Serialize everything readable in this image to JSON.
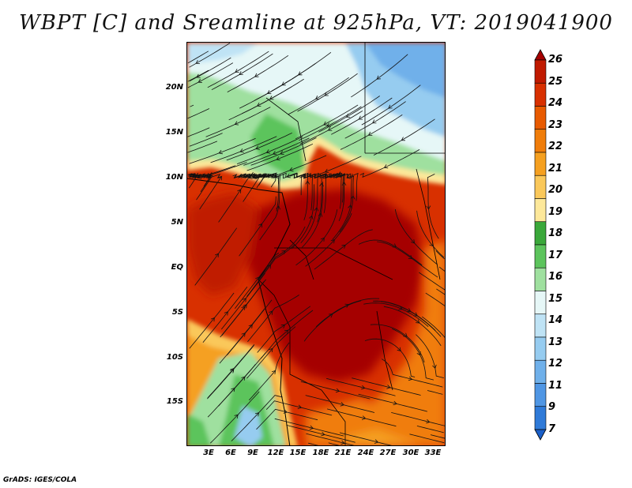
{
  "title": "WBPT [C] and Sreamline at 925hPa, VT: 2019041900",
  "credit": "GrADS: IGES/COLA",
  "lat_ticks": [
    "20N",
    "15N",
    "10N",
    "5N",
    "EQ",
    "5S",
    "10S",
    "15S"
  ],
  "lon_ticks": [
    "3E",
    "6E",
    "9E",
    "12E",
    "15E",
    "18E",
    "21E",
    "24E",
    "27E",
    "30E",
    "33E"
  ],
  "colorbar": {
    "labels": [
      "26",
      "25",
      "24",
      "23",
      "22",
      "21",
      "20",
      "19",
      "18",
      "17",
      "16",
      "15",
      "14",
      "13",
      "12",
      "11",
      "9",
      "7"
    ],
    "colors": [
      "#a50000",
      "#c01a00",
      "#d83000",
      "#e85a00",
      "#f07d0a",
      "#f5a020",
      "#fac85a",
      "#fde89a",
      "#3aa83a",
      "#5cc45c",
      "#9fe09f",
      "#e6f7f7",
      "#bfe3f5",
      "#96ccf0",
      "#6fb0ea",
      "#4f96e4",
      "#2f7ad8",
      "#1a5fc8"
    ]
  },
  "map": {
    "field": "wet-bulb potential temperature",
    "level": "925hPa",
    "valid_time": "2019041900"
  }
}
